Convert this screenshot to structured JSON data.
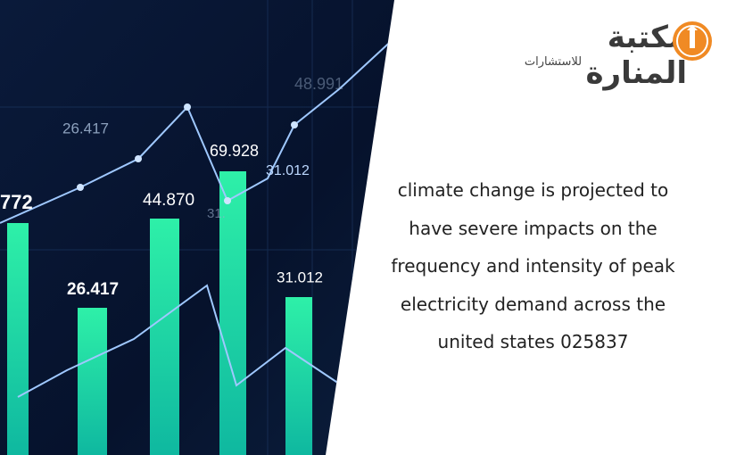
{
  "image": {
    "labels": [
      "26.417",
      "48.991",
      "69.928",
      "31.012",
      "772",
      "44.870",
      "31.",
      "26.417",
      "31.012"
    ]
  },
  "logo": {
    "name": "مكتبة المنارة",
    "subtitle": "للاستشارات"
  },
  "caption": {
    "lines": [
      "climate change is projected to",
      "have severe impacts on the",
      "frequency and intensity of peak",
      "electricity demand across the",
      "united states 025837"
    ]
  }
}
